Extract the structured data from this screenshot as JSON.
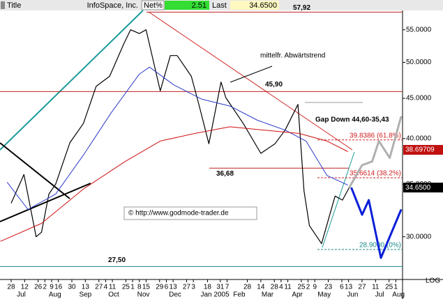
{
  "header": {
    "tab": "Title",
    "name": "InfoSpace, Inc.",
    "net_label": "Net%",
    "net_value": "2.51",
    "last_label": "Last",
    "last_value": "34.6500"
  },
  "chart_data": {
    "type": "line",
    "title": "InfoSpace, Inc.",
    "log_scale": true,
    "grid": false,
    "xlim": [
      -1.65,
      58
    ],
    "ylim": [
      26.8,
      58.2
    ],
    "yticks": [
      {
        "value": 30,
        "label": "30.0000"
      },
      {
        "value": 35,
        "label": "35.0000"
      },
      {
        "value": 40,
        "label": "40.0000"
      },
      {
        "value": 45,
        "label": "45.0000"
      },
      {
        "value": 50,
        "label": "50.0000"
      },
      {
        "value": 55,
        "label": "55.0000"
      }
    ],
    "xticks": [
      {
        "value": 0,
        "label": "28"
      },
      {
        "value": 2,
        "label": "12"
      },
      {
        "value": 4,
        "label": "26"
      },
      {
        "value": 5,
        "label": "2"
      },
      {
        "value": 6,
        "label": "9"
      },
      {
        "value": 7,
        "label": "16"
      },
      {
        "value": 9,
        "label": "30"
      },
      {
        "value": 11,
        "label": "13"
      },
      {
        "value": 13,
        "label": "27"
      },
      {
        "value": 14,
        "label": "4"
      },
      {
        "value": 15,
        "label": "11"
      },
      {
        "value": 17,
        "label": "25"
      },
      {
        "value": 18,
        "label": "1"
      },
      {
        "value": 19,
        "label": "8"
      },
      {
        "value": 20,
        "label": "15"
      },
      {
        "value": 22,
        "label": "29"
      },
      {
        "value": 23,
        "label": "6"
      },
      {
        "value": 24,
        "label": "13"
      },
      {
        "value": 26,
        "label": "27"
      },
      {
        "value": 27,
        "label": "3"
      },
      {
        "value": 29.1,
        "label": "18"
      },
      {
        "value": 31,
        "label": "31"
      },
      {
        "value": 32,
        "label": "7"
      },
      {
        "value": 35,
        "label": "28"
      },
      {
        "value": 37,
        "label": "14"
      },
      {
        "value": 39,
        "label": "28"
      },
      {
        "value": 40,
        "label": "4"
      },
      {
        "value": 41,
        "label": "11"
      },
      {
        "value": 43,
        "label": "25"
      },
      {
        "value": 44,
        "label": "2"
      },
      {
        "value": 45,
        "label": "9"
      },
      {
        "value": 47,
        "label": "23"
      },
      {
        "value": 49,
        "label": "6"
      },
      {
        "value": 50,
        "label": "13"
      },
      {
        "value": 52,
        "label": "27"
      },
      {
        "value": 54,
        "label": "11"
      },
      {
        "value": 56,
        "label": "25"
      },
      {
        "value": 57,
        "label": "1"
      }
    ],
    "month_ticks": [
      {
        "value": 1.5,
        "label": "Jul"
      },
      {
        "value": 6.5,
        "label": "Aug"
      },
      {
        "value": 11,
        "label": "Sep"
      },
      {
        "value": 15.2,
        "label": "Oct"
      },
      {
        "value": 19.6,
        "label": "Nov"
      },
      {
        "value": 24.3,
        "label": "Dec"
      },
      {
        "value": 30.2,
        "label": "Jan 2005"
      },
      {
        "value": 33.8,
        "label": "Feb"
      },
      {
        "value": 38,
        "label": "Mar"
      },
      {
        "value": 42.4,
        "label": "Apr"
      },
      {
        "value": 46.4,
        "label": "May"
      },
      {
        "value": 50.6,
        "label": "Jun"
      },
      {
        "value": 54.6,
        "label": "Jul"
      },
      {
        "value": 57.4,
        "label": "Aug"
      }
    ],
    "series": [
      {
        "color": "#000000",
        "width": 1.2,
        "x": [
          0,
          1.9,
          3.7,
          4.5,
          5.6,
          6.6,
          8.7,
          10.7,
          12.6,
          14.6,
          16.7,
          17.7,
          19,
          20,
          22.1,
          23.6,
          24.6,
          26.7,
          27.7,
          29.3,
          31.1,
          31.8,
          34.4,
          37,
          39.1,
          40.6,
          42.5,
          43.4,
          44.2,
          46,
          48,
          49.1,
          50.1
        ],
        "values": [
          33.1,
          36.0,
          30.0,
          30.4,
          34.0,
          35.0,
          39.5,
          41.8,
          46.6,
          48.0,
          52.8,
          55.0,
          54.4,
          55.0,
          46.0,
          51.0,
          51.0,
          48.0,
          44.6,
          39.4,
          47.2,
          45.1,
          41.8,
          38.3,
          39.4,
          41.0,
          44.2,
          34.3,
          31.0,
          29.4,
          33.8,
          33.4,
          34.65
        ]
      },
      {
        "color": "#2a3ac8",
        "width": 1,
        "x": [
          -0.6,
          2.5,
          6.6,
          10.7,
          14.8,
          19,
          20.5,
          24.1,
          28.2,
          32.4,
          36.5,
          40.6,
          43.7,
          46.8,
          49.9
        ],
        "values": [
          35.2,
          32.5,
          34.0,
          38.1,
          43.1,
          48.3,
          49.3,
          46.8,
          44.9,
          44.0,
          42.2,
          41.0,
          39.7,
          35.9,
          34.9
        ]
      },
      {
        "color": "#d01010",
        "width": 1,
        "x": [
          -1.6,
          4.5,
          10.7,
          16.9,
          22.1,
          27.2,
          32.4,
          37.5,
          42.7,
          46.8,
          49.9
        ],
        "values": [
          29.6,
          31.2,
          34.5,
          37.4,
          39.7,
          40.6,
          41.4,
          41.0,
          40.6,
          39.7,
          38.5
        ]
      },
      {
        "color": "#b0b0b0",
        "width": 3,
        "x": [
          50.1,
          52,
          53.5,
          54.5,
          56.1,
          57.8
        ],
        "values": [
          34.65,
          37.0,
          37.4,
          39.7,
          37.8,
          42.7
        ]
      },
      {
        "color": "#0a1fd8",
        "width": 3,
        "x": [
          50.4,
          52,
          53,
          54.8,
          57.8
        ],
        "values": [
          34.65,
          32.0,
          33.4,
          28.2,
          32.5
        ]
      }
    ],
    "levels": [
      {
        "value": 57.92,
        "label": "57,92",
        "color": "#c02020"
      },
      {
        "value": 45.9,
        "label": "45,90",
        "color": "#c02020"
      },
      {
        "value": 36.68,
        "label": "36,68",
        "color": "#c02020"
      },
      {
        "value": 27.5,
        "label": "27,50",
        "color": "#1a8a8a"
      }
    ],
    "fib_levels": [
      {
        "value": 39.8386,
        "label": "39.8386 (61.8%)",
        "color": "#d02020"
      },
      {
        "value": 35.6614,
        "label": "35.6614 (38.2%)",
        "color": "#d02020"
      },
      {
        "value": 28.9,
        "label": "28.9000 (0%)",
        "color": "#1a8a8a"
      }
    ],
    "price_markers": [
      {
        "value": 38.69709,
        "label": "38.69709",
        "color": "#c01010"
      },
      {
        "value": 34.65,
        "label": "34.6500",
        "color": "#000000"
      }
    ],
    "annotations": [
      "mittelfr. Abwärtstrend",
      "Gap Down 44,60-35,43",
      "© http://www.godmode-trader.de"
    ],
    "scale_label": "LOG"
  }
}
